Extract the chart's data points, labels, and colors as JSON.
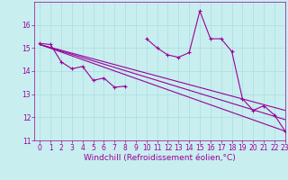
{
  "xlabel": "Windchill (Refroidissement éolien,°C)",
  "bg_color": "#c8eef0",
  "line_color": "#990099",
  "grid_color": "#aadddd",
  "x": [
    0,
    1,
    2,
    3,
    4,
    5,
    6,
    7,
    8,
    9,
    10,
    11,
    12,
    13,
    14,
    15,
    16,
    17,
    18,
    19,
    20,
    21,
    22,
    23
  ],
  "line1": [
    15.2,
    15.15,
    14.4,
    14.1,
    14.2,
    13.6,
    13.7,
    13.3,
    13.35,
    null,
    15.4,
    15.0,
    14.7,
    14.6,
    14.8,
    16.6,
    15.4,
    15.4,
    14.85,
    12.8,
    12.3,
    12.5,
    12.1,
    11.4
  ],
  "trend_lines": [
    [
      15.15,
      11.4
    ],
    [
      15.15,
      11.9
    ],
    [
      15.15,
      12.3
    ]
  ],
  "ylim": [
    11,
    17
  ],
  "xlim": [
    -0.5,
    23
  ],
  "yticks": [
    11,
    12,
    13,
    14,
    15,
    16
  ],
  "xticks": [
    0,
    1,
    2,
    3,
    4,
    5,
    6,
    7,
    8,
    9,
    10,
    11,
    12,
    13,
    14,
    15,
    16,
    17,
    18,
    19,
    20,
    21,
    22,
    23
  ],
  "xtick_labels": [
    "0",
    "1",
    "2",
    "3",
    "4",
    "5",
    "6",
    "7",
    "8",
    "9",
    "10",
    "11",
    "12",
    "13",
    "14",
    "15",
    "16",
    "17",
    "18",
    "19",
    "20",
    "21",
    "22",
    "23"
  ],
  "xlabel_fontsize": 6.5,
  "tick_fontsize": 5.5
}
